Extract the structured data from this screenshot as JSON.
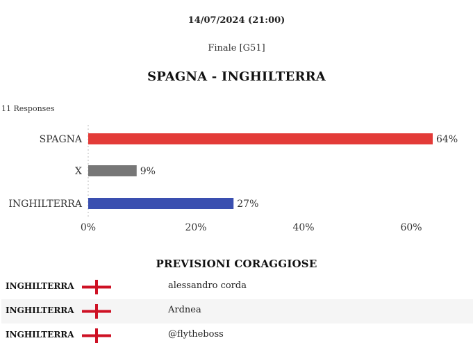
{
  "header": {
    "date": "14/07/2024 (21:00)",
    "stage": "Finale [G51]",
    "match_title": "SPAGNA - INGHILTERRA"
  },
  "poll": {
    "responses_label": "11 Responses"
  },
  "chart_data": {
    "type": "bar",
    "orientation": "horizontal",
    "categories": [
      "SPAGNA",
      "X",
      "INGHILTERRA"
    ],
    "values": [
      64,
      9,
      27
    ],
    "value_labels": [
      "64%",
      "9%",
      "27%"
    ],
    "colors": [
      "#e33b38",
      "#777777",
      "#3a4fb0"
    ],
    "xlim": [
      0,
      64
    ],
    "xticks": [
      0,
      20,
      40,
      60
    ],
    "xtick_labels": [
      "0%",
      "20%",
      "40%",
      "60%"
    ],
    "grid": false
  },
  "predictions": {
    "title": "PREVISIONI CORAGGIOSE",
    "rows": [
      {
        "team": "INGHILTERRA",
        "flag_icon": "england-flag-icon",
        "user": "alessandro corda"
      },
      {
        "team": "INGHILTERRA",
        "flag_icon": "england-flag-icon",
        "user": "Ardnea"
      },
      {
        "team": "INGHILTERRA",
        "flag_icon": "england-flag-icon",
        "user": "@flytheboss"
      }
    ]
  }
}
